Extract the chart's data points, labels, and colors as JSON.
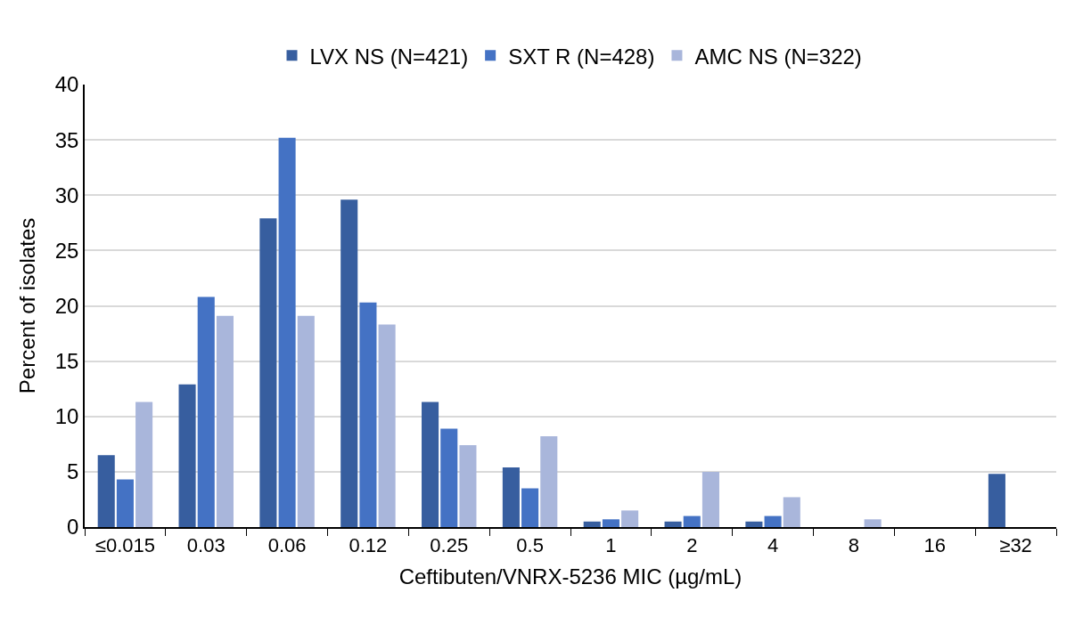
{
  "chart_data": {
    "type": "bar",
    "xlabel": "Ceftibuten/VNRX-5236 MIC (µg/mL)",
    "ylabel": "Percent of isolates",
    "categories": [
      "≤0.015",
      "0.03",
      "0.06",
      "0.12",
      "0.25",
      "0.5",
      "1",
      "2",
      "4",
      "8",
      "16",
      "≥32"
    ],
    "series": [
      {
        "name": "LVX NS (N=421)",
        "color": "#375e9f",
        "values": [
          6.5,
          12.9,
          27.9,
          29.6,
          11.3,
          5.4,
          0.5,
          0.5,
          0.5,
          0,
          0,
          4.8
        ]
      },
      {
        "name": "SXT R (N=428)",
        "color": "#4472c4",
        "values": [
          4.3,
          20.8,
          35.2,
          20.3,
          8.9,
          3.5,
          0.7,
          1.0,
          1.0,
          0,
          0,
          null
        ]
      },
      {
        "name": "AMC NS (N=322)",
        "color": "#a9b6db",
        "values": [
          11.3,
          19.1,
          19.1,
          18.3,
          7.4,
          8.2,
          1.5,
          5.0,
          2.7,
          0.7,
          0,
          null
        ]
      }
    ],
    "ylim": [
      0,
      40
    ],
    "yticks": [
      0,
      5,
      10,
      15,
      20,
      25,
      30,
      35,
      40
    ],
    "grid": "y",
    "legend": "top"
  }
}
